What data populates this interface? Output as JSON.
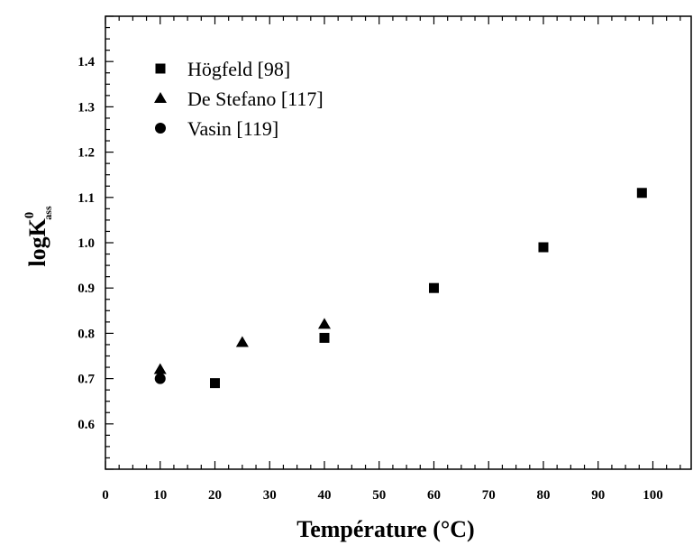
{
  "chart_data": {
    "type": "scatter",
    "xlabel": "Température (°C)",
    "ylabel": {
      "base": "logK",
      "superscript": "0",
      "subscript": "ass"
    },
    "xlim": [
      0,
      107
    ],
    "ylim": [
      0.5,
      1.5
    ],
    "x_ticks": [
      0,
      10,
      20,
      30,
      40,
      50,
      60,
      70,
      80,
      90,
      100
    ],
    "y_ticks": [
      0.6,
      0.7,
      0.8,
      0.9,
      1.0,
      1.1,
      1.2,
      1.3,
      1.4
    ],
    "legend_position": "top-left",
    "series": [
      {
        "name": "Högfeld [98]",
        "marker": "square",
        "points": [
          {
            "x": 20,
            "y": 0.69
          },
          {
            "x": 40,
            "y": 0.79
          },
          {
            "x": 60,
            "y": 0.9
          },
          {
            "x": 80,
            "y": 0.99
          },
          {
            "x": 98,
            "y": 1.11
          }
        ]
      },
      {
        "name": "De Stefano [117]",
        "marker": "triangle",
        "points": [
          {
            "x": 10,
            "y": 0.72
          },
          {
            "x": 25,
            "y": 0.78
          },
          {
            "x": 40,
            "y": 0.82
          }
        ]
      },
      {
        "name": "Vasin [119]",
        "marker": "circle",
        "points": [
          {
            "x": 10,
            "y": 0.7
          }
        ]
      }
    ],
    "colors": {
      "markers": "#000000",
      "axes": "#000000",
      "background": "#ffffff"
    }
  }
}
